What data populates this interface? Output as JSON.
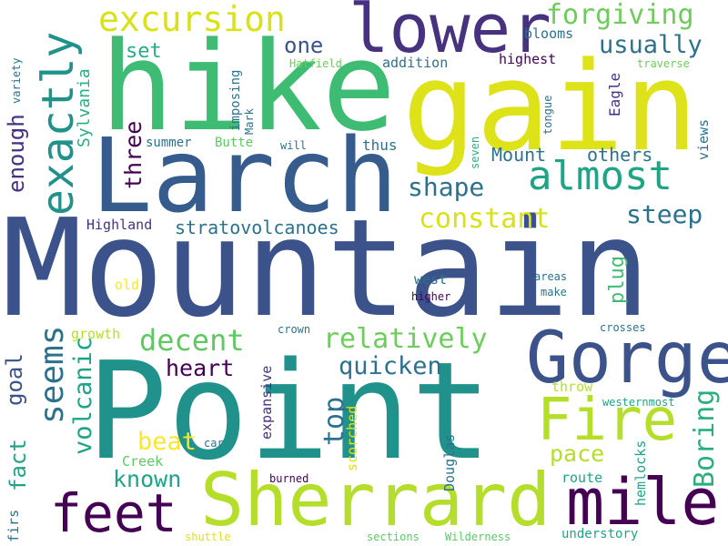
{
  "palette": {
    "dark_purple": "#440154",
    "indigo": "#46327e",
    "blue": "#365c8d",
    "steel_blue": "#3b528b",
    "slate": "#2c728e",
    "teal": "#21918c",
    "green_teal": "#28ae80",
    "green": "#3fbc73",
    "light_green": "#5ec962",
    "lime": "#addc30",
    "yellow": "#fde725"
  },
  "words": [
    {
      "text": "Mountain",
      "color": "#3b528b"
    },
    {
      "text": "Point",
      "color": "#21918c"
    },
    {
      "text": "hike",
      "color": "#3fbc73"
    },
    {
      "text": "gain",
      "color": "#dde318"
    },
    {
      "text": "Larch",
      "color": "#365c8d"
    },
    {
      "text": "Sherrard",
      "color": "#b5de2b"
    },
    {
      "text": "lower",
      "color": "#46327e"
    },
    {
      "text": "Gorge",
      "color": "#3b528b"
    },
    {
      "text": "mile",
      "color": "#440154"
    },
    {
      "text": "feet",
      "color": "#440154"
    },
    {
      "text": "Fire",
      "color": "#b5de2b"
    },
    {
      "text": "exactly",
      "color": "#21918c"
    },
    {
      "text": "excursion",
      "color": "#d8e219"
    },
    {
      "text": "almost",
      "color": "#20a486"
    },
    {
      "text": "forgiving",
      "color": "#6ccd5a"
    },
    {
      "text": "usually",
      "color": "#2c728e"
    },
    {
      "text": "seems",
      "color": "#2c728e"
    },
    {
      "text": "constant",
      "color": "#d8e219"
    },
    {
      "text": "relatively",
      "color": "#6ccd5a"
    },
    {
      "text": "steep",
      "color": "#2c728e"
    },
    {
      "text": "shape",
      "color": "#2c728e"
    },
    {
      "text": "decent",
      "color": "#5ec962"
    },
    {
      "text": "heart",
      "color": "#440154"
    },
    {
      "text": "quicken",
      "color": "#2c728e"
    },
    {
      "text": "top",
      "color": "#2c728e"
    },
    {
      "text": "Boring",
      "color": "#28ae80"
    },
    {
      "text": "beat",
      "color": "#fde725"
    },
    {
      "text": "known",
      "color": "#20a486"
    },
    {
      "text": "pace",
      "color": "#b5de2b"
    },
    {
      "text": "volcanic",
      "color": "#20a486"
    },
    {
      "text": "goal",
      "color": "#3b528b"
    },
    {
      "text": "fact",
      "color": "#20a486"
    },
    {
      "text": "one",
      "color": "#3b528b"
    },
    {
      "text": "set",
      "color": "#28ae80"
    },
    {
      "text": "three",
      "color": "#440154"
    },
    {
      "text": "enough",
      "color": "#46327e"
    },
    {
      "text": "plug",
      "color": "#3fbc73"
    },
    {
      "text": "Mount",
      "color": "#2c728e"
    },
    {
      "text": "others",
      "color": "#2c728e"
    },
    {
      "text": "stratovolcanoes",
      "color": "#2c728e"
    },
    {
      "text": "Highland",
      "color": "#46327e"
    },
    {
      "text": "Sylvania",
      "color": "#28ae80"
    },
    {
      "text": "imposing",
      "color": "#2c728e"
    },
    {
      "text": "blooms",
      "color": "#2c728e"
    },
    {
      "text": "highest",
      "color": "#440154"
    },
    {
      "text": "addition",
      "color": "#2c728e"
    },
    {
      "text": "Hatfield",
      "color": "#6ccd5a"
    },
    {
      "text": "traverse",
      "color": "#6ccd5a"
    },
    {
      "text": "Eagle",
      "color": "#46327e"
    },
    {
      "text": "views",
      "color": "#2c728e"
    },
    {
      "text": "tongue",
      "color": "#2c728e"
    },
    {
      "text": "summer",
      "color": "#2c728e"
    },
    {
      "text": "Butte",
      "color": "#5ec962"
    },
    {
      "text": "thus",
      "color": "#2c728e"
    },
    {
      "text": "seven",
      "color": "#28ae80"
    },
    {
      "text": "will",
      "color": "#2c728e"
    },
    {
      "text": "Mark",
      "color": "#2c728e"
    },
    {
      "text": "variety",
      "color": "#2c728e"
    },
    {
      "text": "west",
      "color": "#2c728e"
    },
    {
      "text": "old",
      "color": "#fde725"
    },
    {
      "text": "higher",
      "color": "#440154"
    },
    {
      "text": "areas",
      "color": "#2c728e"
    },
    {
      "text": "make",
      "color": "#2c728e"
    },
    {
      "text": "growth",
      "color": "#b5de2b"
    },
    {
      "text": "crown",
      "color": "#2c728e"
    },
    {
      "text": "crosses",
      "color": "#2c728e"
    },
    {
      "text": "expansive",
      "color": "#46327e"
    },
    {
      "text": "scorched",
      "color": "#dde318"
    },
    {
      "text": "throw",
      "color": "#b5de2b"
    },
    {
      "text": "westernmost",
      "color": "#20a486"
    },
    {
      "text": "Douglas",
      "color": "#2c728e"
    },
    {
      "text": "hemlocks",
      "color": "#20a486"
    },
    {
      "text": "Creek",
      "color": "#5ec962"
    },
    {
      "text": "car",
      "color": "#2c728e"
    },
    {
      "text": "route",
      "color": "#20a486"
    },
    {
      "text": "burned",
      "color": "#440154"
    },
    {
      "text": "firs",
      "color": "#2c728e"
    },
    {
      "text": "shuttle",
      "color": "#dde318"
    },
    {
      "text": "sections",
      "color": "#5ec962"
    },
    {
      "text": "Wilderness",
      "color": "#5ec962"
    },
    {
      "text": "understory",
      "color": "#20a486"
    }
  ]
}
